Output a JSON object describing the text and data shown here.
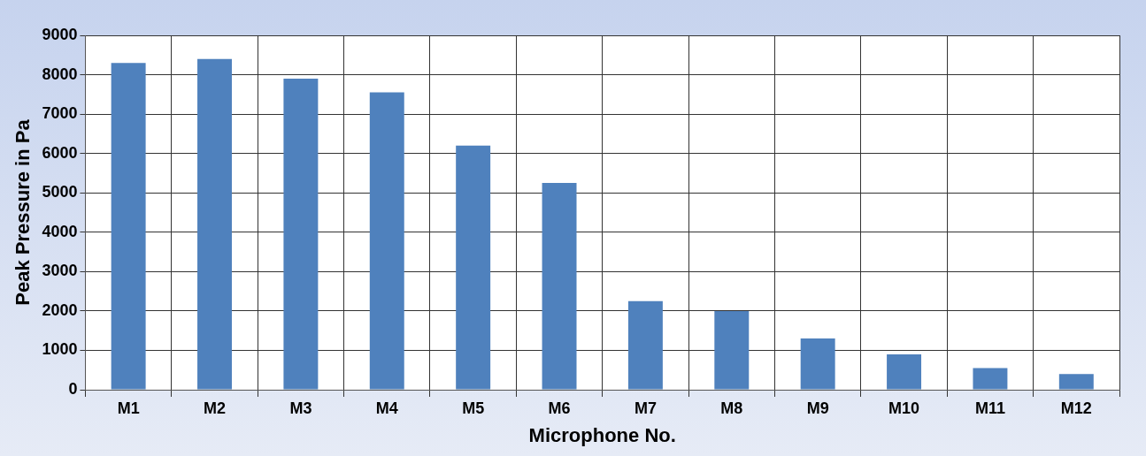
{
  "chart_data": {
    "type": "bar",
    "xlabel": "Microphone No.",
    "ylabel": "Peak Pressure in Pa",
    "categories": [
      "M1",
      "M2",
      "M3",
      "M4",
      "M5",
      "M6",
      "M7",
      "M8",
      "M9",
      "M10",
      "M11",
      "M12"
    ],
    "values": [
      8300,
      8400,
      7900,
      7550,
      6200,
      5250,
      2250,
      2000,
      1300,
      900,
      550,
      400
    ],
    "color": "#4f81bd",
    "ylim": [
      0,
      9000
    ],
    "yticks": [
      0,
      1000,
      2000,
      3000,
      4000,
      5000,
      6000,
      7000,
      8000,
      9000
    ],
    "grid": true,
    "legend": false
  }
}
